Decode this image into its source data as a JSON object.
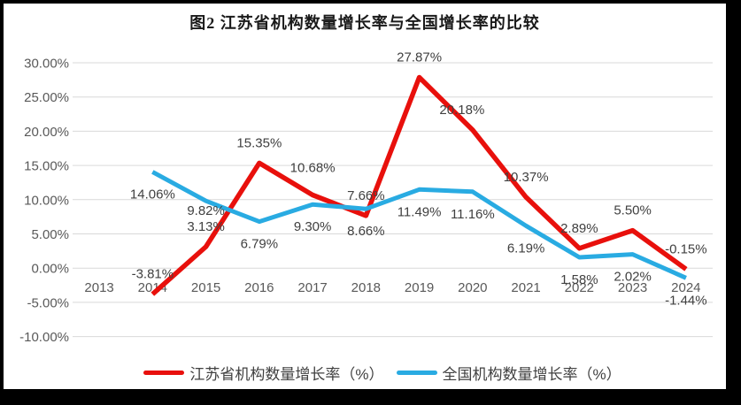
{
  "chart_data": {
    "type": "line",
    "title": "图2  江苏省机构数量增长率与全国增长率的比较",
    "categories": [
      "2013",
      "2014",
      "2015",
      "2016",
      "2017",
      "2018",
      "2019",
      "2020",
      "2021",
      "2022",
      "2023",
      "2024"
    ],
    "series": [
      {
        "name": "江苏省机构数量增长率（%）",
        "color": "#e8100c",
        "values": [
          null,
          -3.81,
          3.13,
          15.35,
          10.68,
          7.66,
          27.87,
          20.18,
          10.37,
          2.89,
          5.5,
          -0.15
        ]
      },
      {
        "name": "全国机构数量增长率（%）",
        "color": "#29abe2",
        "values": [
          null,
          14.06,
          9.82,
          6.79,
          9.3,
          8.66,
          11.49,
          11.16,
          6.19,
          1.58,
          2.02,
          -1.44
        ]
      }
    ],
    "ylim": [
      -10,
      30
    ],
    "ytick_step": 5,
    "ytick_labels": [
      "30.00%",
      "25.00%",
      "20.00%",
      "15.00%",
      "10.00%",
      "5.00%",
      "0.00%",
      "-5.00%",
      "-10.00%"
    ],
    "label_format": "percent-2dp",
    "grid": "horizontal",
    "legend_position": "bottom"
  },
  "colors": {
    "grid": "#d9d9d9",
    "axis_text": "#595959",
    "data_label_text": "#404040",
    "title_text": "#1a1a1a",
    "canvas_background": "#ffffff",
    "frame_border": "#000000"
  }
}
